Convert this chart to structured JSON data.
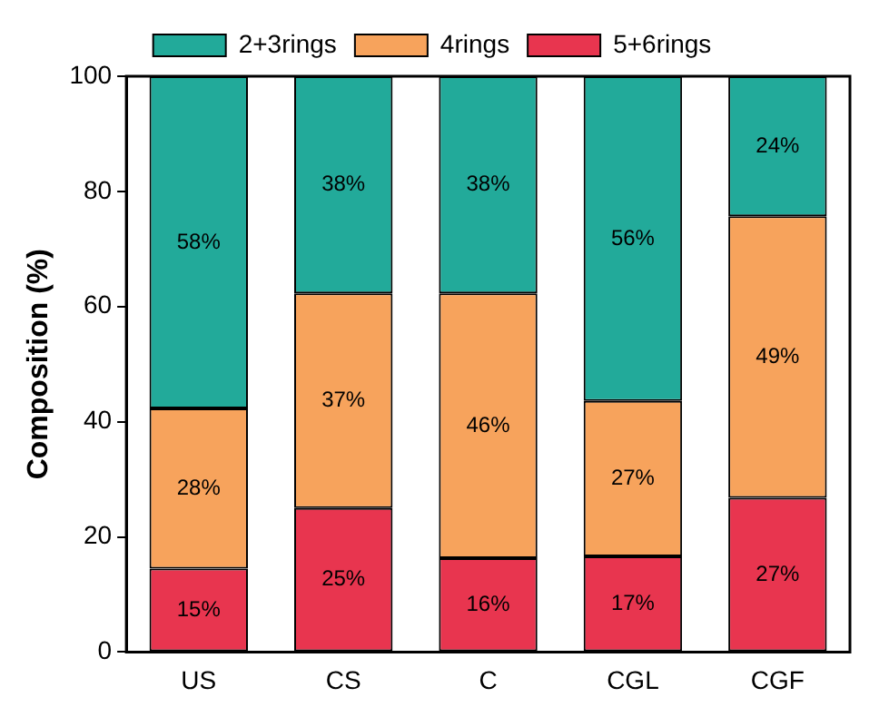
{
  "chart_data": {
    "type": "bar",
    "stacked": true,
    "ylabel": "Composition (%)",
    "categories": [
      "US",
      "CS",
      "C",
      "CGL",
      "CGF"
    ],
    "series": [
      {
        "name": "5+6rings",
        "color": "#e8354f",
        "values": [
          14.5,
          25,
          16.3,
          16.6,
          26.8
        ],
        "value_labels": [
          "15%",
          "25%",
          "16%",
          "17%",
          "27%"
        ]
      },
      {
        "name": "4rings",
        "color": "#f7a35c",
        "values": [
          27.8,
          37.3,
          46,
          27,
          48.9
        ],
        "value_labels": [
          "28%",
          "37%",
          "46%",
          "27%",
          "49%"
        ]
      },
      {
        "name": "2+3rings",
        "color": "#22aa9a",
        "values": [
          57.7,
          37.7,
          37.7,
          56.4,
          24.3
        ],
        "value_labels": [
          "58%",
          "38%",
          "38%",
          "56%",
          "24%"
        ]
      }
    ],
    "ylim": [
      0,
      100
    ],
    "yticks": [
      0,
      20,
      40,
      60,
      80,
      100
    ],
    "grid": false,
    "legend": "top"
  }
}
